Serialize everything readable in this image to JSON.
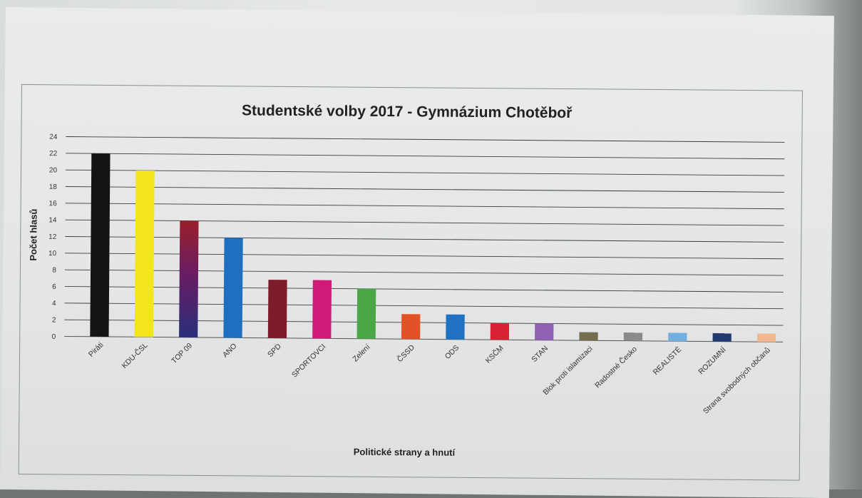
{
  "chart_data": {
    "type": "bar",
    "title": "Studentské volby 2017 - Gymnázium Chotěboř",
    "xlabel": "Politické strany a hnutí",
    "ylabel": "Počet hlasů",
    "ylim": [
      0,
      24
    ],
    "yticks": [
      0,
      2,
      4,
      6,
      8,
      10,
      12,
      14,
      16,
      18,
      20,
      22,
      24
    ],
    "grid": true,
    "legend": "none",
    "categories": [
      "Piráti",
      "KDU-ČSL",
      "TOP 09",
      "ANO",
      "SPD",
      "SPORTOVCI",
      "Zelení",
      "ČSSD",
      "ODS",
      "KSČM",
      "STAN",
      "Blok proti islamizaci",
      "Radostné Česko",
      "REALISTÉ",
      "ROZUMNÍ",
      "Strana svobodných občanů"
    ],
    "values": [
      22,
      20,
      14,
      12,
      7,
      7,
      6,
      3,
      3,
      2,
      2,
      1,
      1,
      1,
      1,
      1
    ],
    "colors": [
      "#141414",
      "#f2e51c",
      [
        "#9a1f2a",
        "#6a1c63",
        "#2a2f7a"
      ],
      "#1e6fc0",
      "#7d1d2c",
      "#d11a78",
      "#4aa647",
      "#e35226",
      "#1f72c2",
      "#d62232",
      "#8f62b5",
      "#756d4f",
      "#8a8a8a",
      "#73aede",
      "#233a6e",
      "#f0b88e"
    ]
  }
}
